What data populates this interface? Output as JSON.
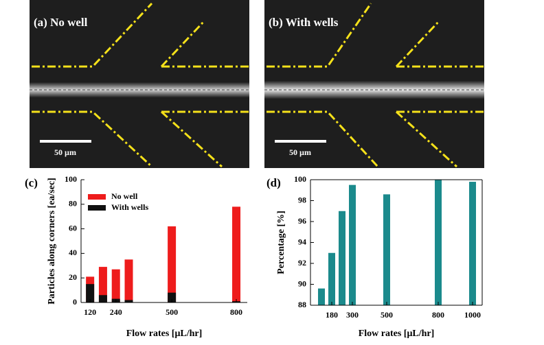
{
  "images": [
    {
      "label": "(a) No well",
      "scale_bar": "50 µm"
    },
    {
      "label": "(b) With wells",
      "scale_bar": "50 µm"
    }
  ],
  "chart_data": [
    {
      "type": "bar",
      "label": "(c)",
      "x_label": "Flow rates [μL/hr]",
      "y_label": "Particles along corners [ea/sec]",
      "x": [
        120,
        180,
        240,
        300,
        500,
        800
      ],
      "series": [
        {
          "name": "No well",
          "color": "#ee1c1c",
          "values": [
            21,
            29,
            27,
            35,
            62,
            78
          ]
        },
        {
          "name": "With wells",
          "color": "#111111",
          "values": [
            15,
            6,
            3,
            2,
            8,
            1
          ]
        }
      ],
      "xlim": [
        78,
        851
      ],
      "xticks": [
        120,
        240,
        500,
        800
      ],
      "ylim": [
        0,
        100
      ],
      "yticks": [
        0,
        20,
        40,
        60,
        80,
        100
      ],
      "legend": "upper-left",
      "box": false
    },
    {
      "type": "bar",
      "label": "(d)",
      "x_label": "Flow rates [μL/hr]",
      "y_label": "Percentage [%]",
      "x": [
        120,
        180,
        240,
        300,
        500,
        800,
        1000
      ],
      "series": [
        {
          "color": "#1b8a8c",
          "values": [
            89.6,
            93,
            97,
            99.5,
            98.6,
            100,
            99.8
          ]
        }
      ],
      "xlim": [
        56,
        1056
      ],
      "xticks": [
        180,
        300,
        500,
        800,
        1000
      ],
      "ylim": [
        88,
        100
      ],
      "yticks": [
        88,
        90,
        92,
        94,
        96,
        98,
        100
      ],
      "box": true
    }
  ]
}
